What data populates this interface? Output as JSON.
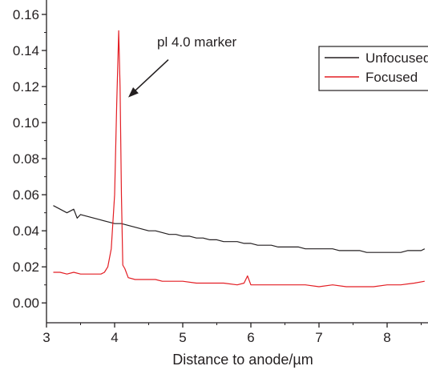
{
  "chart_data": {
    "type": "line",
    "title": "",
    "xlabel": "Distance to anode/µm",
    "ylabel": "",
    "xlim": [
      3.0,
      8.6
    ],
    "ylim": [
      -0.011,
      0.168
    ],
    "x_ticks": [
      3,
      4,
      5,
      6,
      7,
      8
    ],
    "x_tick_labels": [
      "3",
      "4",
      "5",
      "6",
      "7",
      "8"
    ],
    "y_ticks": [
      0.0,
      0.02,
      0.04,
      0.06,
      0.08,
      0.1,
      0.12,
      0.14,
      0.16
    ],
    "y_tick_labels": [
      "0.00",
      "0.02",
      "0.04",
      "0.06",
      "0.08",
      "0.10",
      "0.12",
      "0.14",
      "0.16"
    ],
    "grid": false,
    "legend_position": "top-right",
    "annotation": {
      "text": "pl 4.0 marker",
      "points_to": [
        4.2,
        0.114
      ]
    },
    "series": [
      {
        "name": "Unfocused",
        "color": "#231f20",
        "x": [
          3.1,
          3.2,
          3.3,
          3.4,
          3.45,
          3.5,
          3.6,
          3.7,
          3.8,
          3.9,
          4.0,
          4.1,
          4.2,
          4.3,
          4.4,
          4.5,
          4.6,
          4.7,
          4.8,
          4.9,
          5.0,
          5.1,
          5.2,
          5.3,
          5.4,
          5.5,
          5.6,
          5.7,
          5.8,
          5.9,
          6.0,
          6.1,
          6.2,
          6.3,
          6.4,
          6.5,
          6.6,
          6.7,
          6.8,
          6.9,
          7.0,
          7.1,
          7.2,
          7.3,
          7.4,
          7.5,
          7.6,
          7.7,
          7.8,
          7.9,
          8.0,
          8.1,
          8.2,
          8.3,
          8.4,
          8.5,
          8.55
        ],
        "y": [
          0.054,
          0.052,
          0.05,
          0.052,
          0.047,
          0.049,
          0.048,
          0.047,
          0.046,
          0.045,
          0.044,
          0.044,
          0.043,
          0.042,
          0.041,
          0.04,
          0.04,
          0.039,
          0.038,
          0.038,
          0.037,
          0.037,
          0.036,
          0.036,
          0.035,
          0.035,
          0.034,
          0.034,
          0.034,
          0.033,
          0.033,
          0.032,
          0.032,
          0.032,
          0.031,
          0.031,
          0.031,
          0.031,
          0.03,
          0.03,
          0.03,
          0.03,
          0.03,
          0.029,
          0.029,
          0.029,
          0.029,
          0.028,
          0.028,
          0.028,
          0.028,
          0.028,
          0.028,
          0.029,
          0.029,
          0.029,
          0.03
        ]
      },
      {
        "name": "Focused",
        "color": "#e31e24",
        "x": [
          3.1,
          3.2,
          3.3,
          3.4,
          3.5,
          3.6,
          3.7,
          3.8,
          3.85,
          3.9,
          3.95,
          4.0,
          4.03,
          4.06,
          4.08,
          4.1,
          4.12,
          4.15,
          4.2,
          4.3,
          4.4,
          4.5,
          4.6,
          4.7,
          4.8,
          4.9,
          5.0,
          5.2,
          5.4,
          5.6,
          5.8,
          5.9,
          5.95,
          6.0,
          6.2,
          6.4,
          6.6,
          6.8,
          7.0,
          7.2,
          7.4,
          7.6,
          7.8,
          8.0,
          8.2,
          8.4,
          8.55
        ],
        "y": [
          0.017,
          0.017,
          0.016,
          0.017,
          0.016,
          0.016,
          0.016,
          0.016,
          0.017,
          0.02,
          0.03,
          0.06,
          0.11,
          0.151,
          0.12,
          0.06,
          0.021,
          0.019,
          0.014,
          0.013,
          0.013,
          0.013,
          0.013,
          0.012,
          0.012,
          0.012,
          0.012,
          0.011,
          0.011,
          0.011,
          0.01,
          0.011,
          0.015,
          0.01,
          0.01,
          0.01,
          0.01,
          0.01,
          0.009,
          0.01,
          0.009,
          0.009,
          0.009,
          0.01,
          0.01,
          0.011,
          0.012
        ]
      }
    ]
  }
}
